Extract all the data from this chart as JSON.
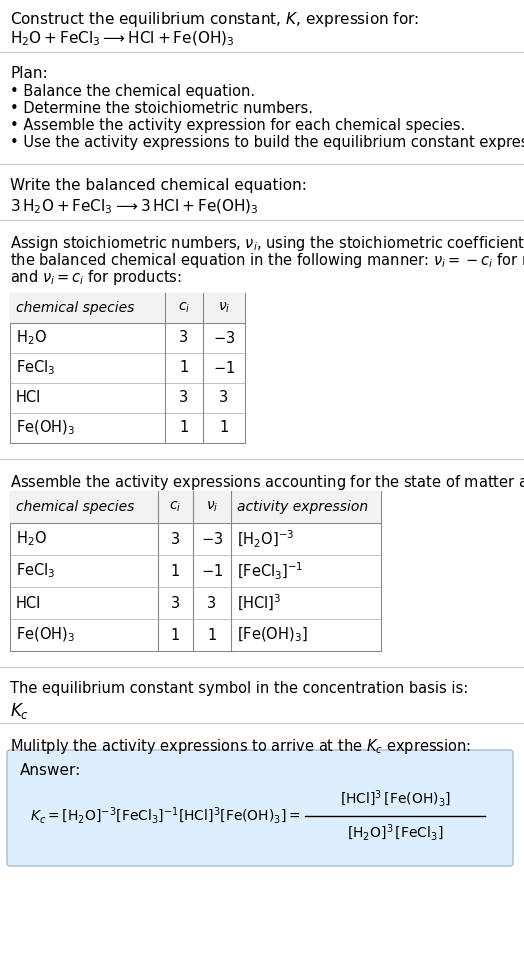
{
  "bg_color": "#ffffff",
  "sections": {
    "title1": "Construct the equilibrium constant, $K$, expression for:",
    "title2_parts": [
      "$\\mathrm{H_2O}$",
      " + ",
      "$\\mathrm{FeCl_3}$",
      " $\\longrightarrow$ ",
      "$\\mathrm{HCl}$",
      " + ",
      "$\\mathrm{Fe(OH)_3}$"
    ],
    "plan_header": "Plan:",
    "plan_items": [
      "• Balance the chemical equation.",
      "• Determine the stoichiometric numbers.",
      "• Assemble the activity expression for each chemical species.",
      "• Use the activity expressions to build the equilibrium constant expression."
    ],
    "balanced_header": "Write the balanced chemical equation:",
    "balanced_eq": "$3\\,\\mathrm{H_2O} + \\mathrm{FeCl_3} \\longrightarrow 3\\,\\mathrm{HCl} + \\mathrm{Fe(OH)_3}$",
    "assign_text": [
      "Assign stoichiometric numbers, $\\nu_i$, using the stoichiometric coefficients, $c_i$, from",
      "the balanced chemical equation in the following manner: $\\nu_i = -c_i$ for reactants",
      "and $\\nu_i = c_i$ for products:"
    ],
    "table1_headers": [
      "chemical species",
      "$c_i$",
      "$\\nu_i$"
    ],
    "table1_rows": [
      [
        "$\\mathrm{H_2O}$",
        "3",
        "$-3$"
      ],
      [
        "$\\mathrm{FeCl_3}$",
        "1",
        "$-1$"
      ],
      [
        "HCl",
        "3",
        "3"
      ],
      [
        "$\\mathrm{Fe(OH)_3}$",
        "1",
        "1"
      ]
    ],
    "assemble_text": "Assemble the activity expressions accounting for the state of matter and $\\nu_i$:",
    "table2_headers": [
      "chemical species",
      "$c_i$",
      "$\\nu_i$",
      "activity expression"
    ],
    "table2_rows": [
      [
        "$\\mathrm{H_2O}$",
        "3",
        "$-3$",
        "$[\\mathrm{H_2O}]^{-3}$"
      ],
      [
        "$\\mathrm{FeCl_3}$",
        "1",
        "$-1$",
        "$[\\mathrm{FeCl_3}]^{-1}$"
      ],
      [
        "HCl",
        "3",
        "3",
        "$[\\mathrm{HCl}]^3$"
      ],
      [
        "$\\mathrm{Fe(OH)_3}$",
        "1",
        "1",
        "$[\\mathrm{Fe(OH)_3}]$"
      ]
    ],
    "kc_text": "The equilibrium constant symbol in the concentration basis is:",
    "kc_symbol": "$K_c$",
    "multiply_text": "Mulitply the activity expressions to arrive at the $K_c$ expression:",
    "answer_label": "Answer:",
    "answer_bg": "#ddeeff",
    "answer_border": "#aabbcc"
  }
}
